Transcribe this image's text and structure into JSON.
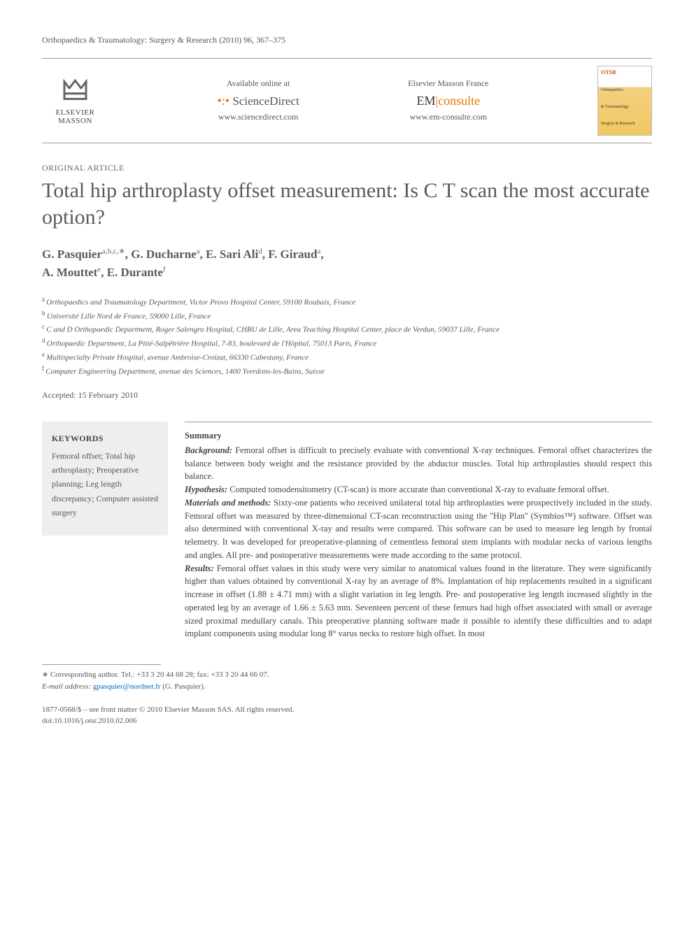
{
  "journal_reference": "Orthopaedics & Traumatology: Surgery & Research (2010) 96, 367–375",
  "header": {
    "publisher_name": "ELSEVIER MASSON",
    "sciencedirect": {
      "available_text": "Available online at",
      "brand": "ScienceDirect",
      "url": "www.sciencedirect.com"
    },
    "emconsulte": {
      "brand_label": "Elsevier Masson France",
      "brand_em": "EM",
      "brand_consulte": "consulte",
      "url": "www.em-consulte.com"
    },
    "cover": {
      "top_line": "OTSR",
      "mid_line_1": "Orthopaedics",
      "mid_line_2": "& Traumatology",
      "mid_line_3": "Surgery & Research"
    }
  },
  "section_type": "ORIGINAL ARTICLE",
  "title": "Total hip arthroplasty offset measurement: Is C T scan the most accurate option?",
  "authors_html_parts": {
    "a1_name": "G. Pasquier",
    "a1_sup": "a,b,c,∗",
    "a2_name": "G. Ducharne",
    "a2_sup": "a",
    "a3_name": "E. Sari Ali",
    "a3_sup": "d",
    "a4_name": "F. Giraud",
    "a4_sup": "a",
    "a5_name": "A. Mouttet",
    "a5_sup": "e",
    "a6_name": "E. Durante",
    "a6_sup": "f"
  },
  "affiliations": [
    {
      "key": "a",
      "text": "Orthopaedics and Traumatology Department, Victor Provo Hospital Center, 59100 Roubaix, France"
    },
    {
      "key": "b",
      "text": "Université Lille Nord de France, 59000 Lille, France"
    },
    {
      "key": "c",
      "text": "C and D Orthopaedic Department, Roger Salengro Hospital, CHRU de Lille, Area Teaching Hospital Center, place de Verdun, 59037 Lille, France"
    },
    {
      "key": "d",
      "text": "Orthopaedic Department, La Pitié-Salpêtrière Hospital, 7-83, boulevard de l'Hôpital, 75013 Paris, France"
    },
    {
      "key": "e",
      "text": "Multispecialty Private Hospital, avenue Ambroise-Croizat, 66330 Cabestany, France"
    },
    {
      "key": "f",
      "text": "Computer Engineering Department, avenue des Sciences, 1400 Yverdons-les-Bains, Suisse"
    }
  ],
  "accepted": "Accepted: 15 February 2010",
  "keywords": {
    "heading": "KEYWORDS",
    "items": "Femoral offset; Total hip arthroplasty; Preoperative planning; Leg length discrepancy; Computer assisted surgery"
  },
  "abstract": {
    "summary_heading": "Summary",
    "background_label": "Background:",
    "background": " Femoral offset is difficult to precisely evaluate with conventional X-ray techniques. Femoral offset characterizes the balance between body weight and the resistance provided by the abductor muscles. Total hip arthroplasties should respect this balance.",
    "hypothesis_label": "Hypothesis:",
    "hypothesis": " Computed tomodensitometry (CT-scan) is more accurate than conventional X-ray to evaluate femoral offset.",
    "methods_label": "Materials and methods:",
    "methods": " Sixty-one patients who received unilateral total hip arthroplasties were prospectively included in the study. Femoral offset was measured by three-dimensional CT-scan reconstruction using the ''Hip Plan'' (Symbios™) software. Offset was also determined with conventional X-ray and results were compared. This software can be used to measure leg length by frontal telemetry. It was developed for preoperative-planning of cementless femoral stem implants with modular necks of various lengths and angles. All pre- and postoperative measurements were made according to the same protocol.",
    "results_label": "Results:",
    "results": " Femoral offset values in this study were very similar to anatomical values found in the literature. They were significantly higher than values obtained by conventional X-ray by an average of 8%. Implantation of hip replacements resulted in a significant increase in offset (1.88 ± 4.71 mm) with a slight variation in leg length. Pre- and postoperative leg length increased slightly in the operated leg by an average of 1.66 ± 5.63 mm. Seventeen percent of these femurs had high offset associated with small or average sized proximal medullary canals. This preoperative planning software made it possible to identify these difficulties and to adapt implant components using modular long 8° varus necks to restore high offset. In most"
  },
  "corresponding": {
    "line1": "∗ Corresponding author. Tel.: +33 3 20 44 68 28; fax: +33 3 20 44 66 07.",
    "email_label": "E-mail address:",
    "email": "gpasquier@nordnet.fr",
    "email_suffix": "(G. Pasquier)."
  },
  "footer": {
    "line1": "1877-0568/$ – see front matter © 2010 Elsevier Masson SAS. All rights reserved.",
    "line2": "doi:10.1016/j.otsr.2010.02.006"
  },
  "colors": {
    "text_main": "#444444",
    "text_muted": "#555555",
    "title_gray": "#5a5a5a",
    "orange": "#e07b00",
    "link": "#0066cc",
    "keywords_bg": "#eeeeee",
    "rule": "#999999"
  }
}
